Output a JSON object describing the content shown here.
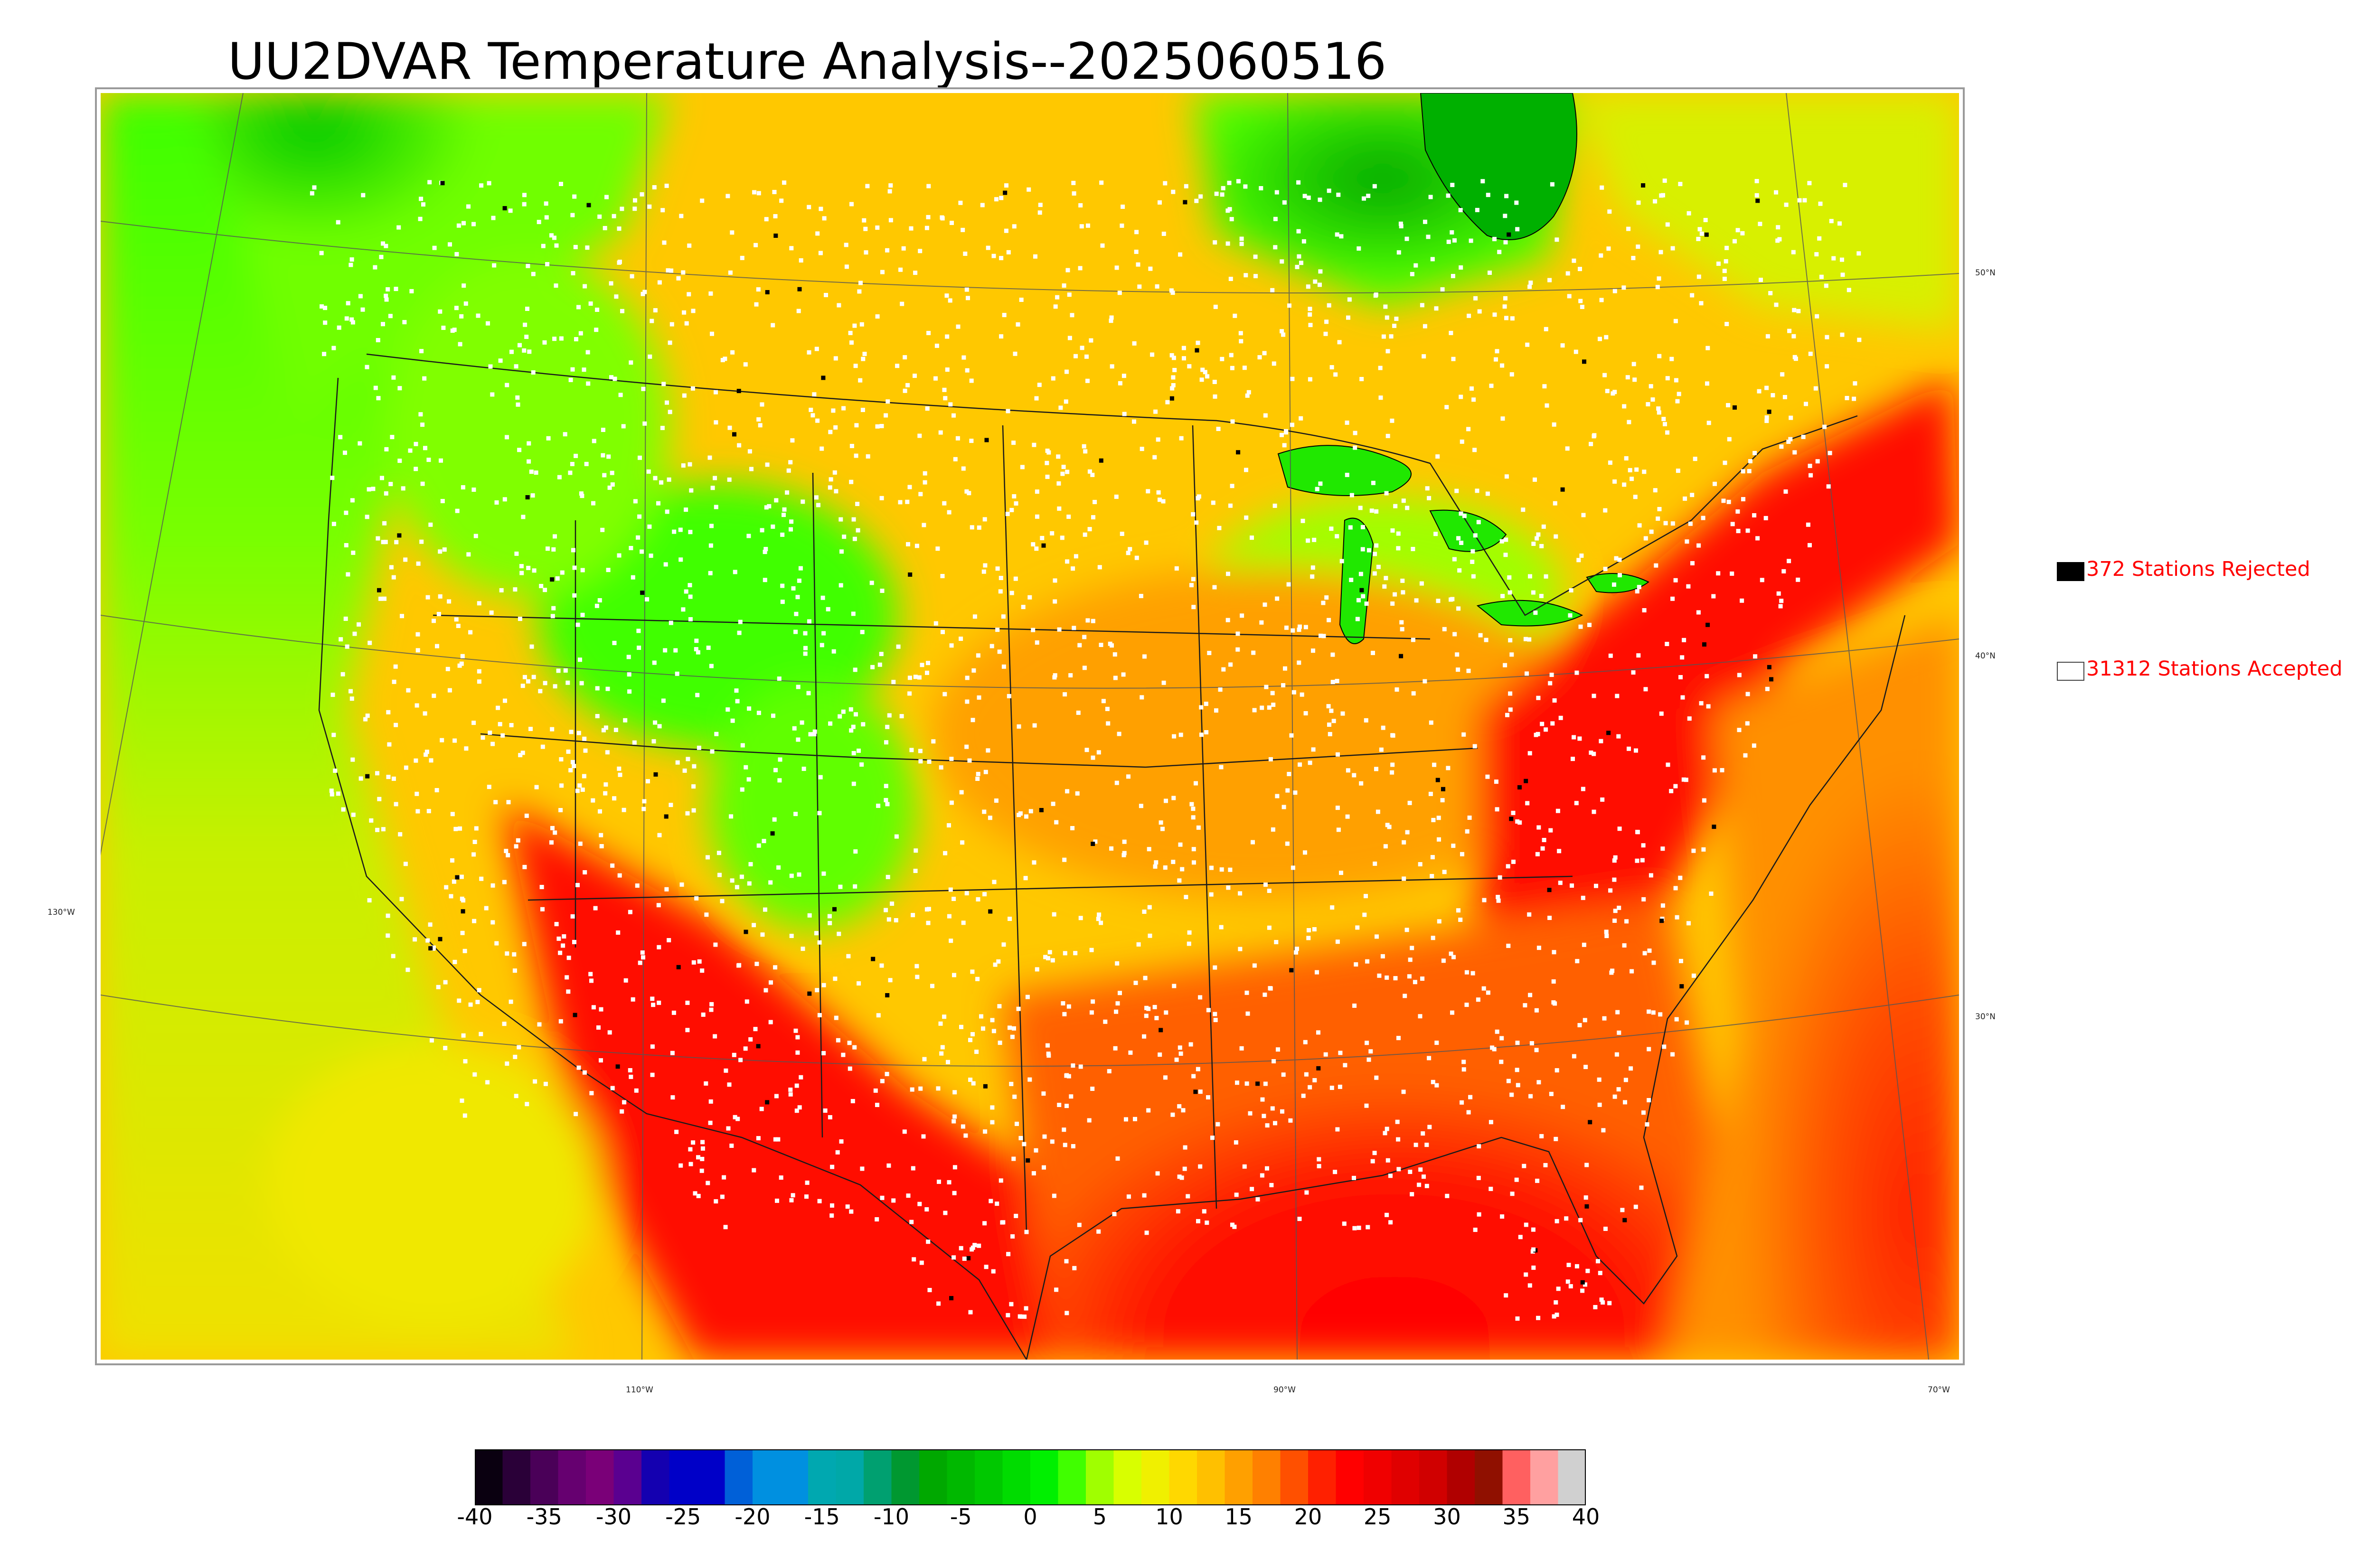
{
  "title": "UU2DVAR Temperature Analysis--2025060516",
  "legend": {
    "rejected": {
      "label": "372 Stations Rejected",
      "color": "#000000"
    },
    "accepted": {
      "label": "31312 Stations Accepted",
      "color": "#ffffff"
    }
  },
  "map": {
    "latitude_labels": [
      "50°N",
      "40°N",
      "30°N"
    ],
    "longitude_labels": [
      "130°W",
      "110°W",
      "90°W",
      "70°W"
    ]
  },
  "colorbar": {
    "min": -40,
    "max": 40,
    "tick_labels": [
      "-40",
      "-35",
      "-30",
      "-25",
      "-20",
      "-15",
      "-10",
      "-5",
      "0",
      "5",
      "10",
      "15",
      "20",
      "25",
      "30",
      "35",
      "40"
    ],
    "colors": [
      "#0a0010",
      "#2a0038",
      "#4a0058",
      "#660070",
      "#7a0078",
      "#5a0090",
      "#1400b0",
      "#0000c8",
      "#0000c8",
      "#0060d8",
      "#0090e0",
      "#0090e0",
      "#00a8b0",
      "#00a8a8",
      "#00a070",
      "#009830",
      "#00a800",
      "#00b800",
      "#00c800",
      "#00dc00",
      "#00f000",
      "#40ff00",
      "#a0ff00",
      "#d8ff00",
      "#f0f000",
      "#ffd800",
      "#ffc000",
      "#ffa000",
      "#ff8000",
      "#ff5000",
      "#ff2000",
      "#ff0000",
      "#f00000",
      "#e00000",
      "#d00000",
      "#b00000",
      "#901000",
      "#ff6060",
      "#ffa0a0",
      "#d0d0d0"
    ]
  }
}
